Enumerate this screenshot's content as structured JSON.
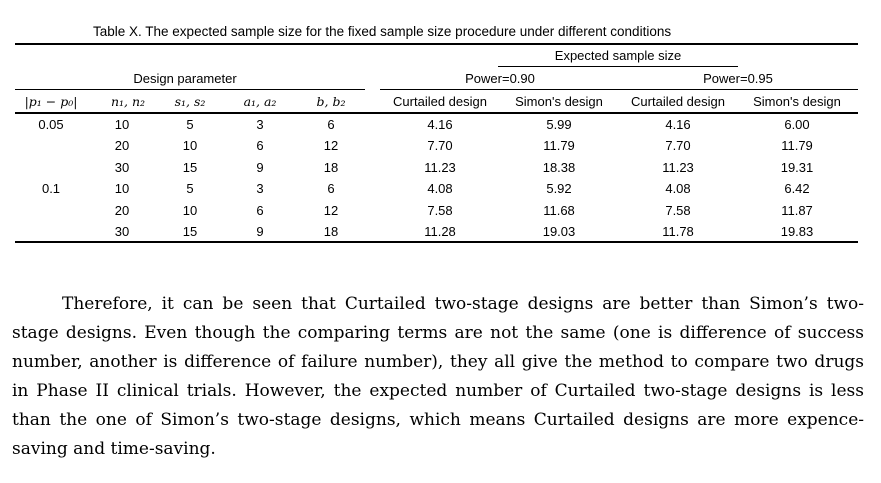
{
  "caption": "Table X. The expected sample size for the fixed sample size procedure under different conditions",
  "table": {
    "header_expected": "Expected sample size",
    "header_design": "Design parameter",
    "header_power_090": "Power=0.90",
    "header_power_095": "Power=0.95",
    "columns": [
      "|p₁ − p₀|",
      "n₁, n₂",
      "s₁, s₂",
      "a₁, a₂",
      "b, b₂",
      "Curtailed design",
      "Simon's design",
      "Curtailed design",
      "Simon's design"
    ],
    "rows": [
      [
        "0.05",
        "10",
        "5",
        "3",
        "6",
        "4.16",
        "5.99",
        "4.16",
        "6.00"
      ],
      [
        "",
        "20",
        "10",
        "6",
        "12",
        "7.70",
        "11.79",
        "7.70",
        "11.79"
      ],
      [
        "",
        "30",
        "15",
        "9",
        "18",
        "11.23",
        "18.38",
        "11.23",
        "19.31"
      ],
      [
        "0.1",
        "10",
        "5",
        "3",
        "6",
        "4.08",
        "5.92",
        "4.08",
        "6.42"
      ],
      [
        "",
        "20",
        "10",
        "6",
        "12",
        "7.58",
        "11.68",
        "7.58",
        "11.87"
      ],
      [
        "",
        "30",
        "15",
        "9",
        "18",
        "11.28",
        "19.03",
        "11.78",
        "19.83"
      ]
    ]
  },
  "paragraph": "Therefore, it can be seen that Curtailed two-stage designs are better than Simon’s two-stage designs. Even though the comparing terms are not the same (one is difference of success number, another is difference of failure number), they all give the method to compare two drugs in Phase II clinical trials. However, the expected number of Curtailed two-stage designs is less than the one of Simon’s two-stage designs, which means Curtailed designs are more expence-saving and time-saving."
}
